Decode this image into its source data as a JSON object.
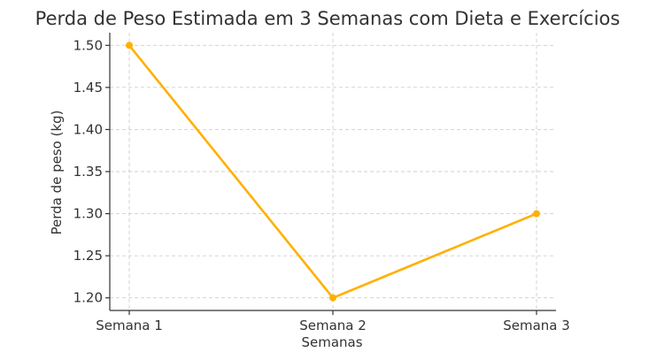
{
  "chart_data": {
    "type": "line",
    "title": "Perda de Peso Estimada em 3 Semanas com Dieta e Exercícios",
    "xlabel": "Semanas",
    "ylabel": "Perda de peso (kg)",
    "categories": [
      "Semana 1",
      "Semana 2",
      "Semana 3"
    ],
    "values": [
      1.5,
      1.2,
      1.3
    ],
    "ylim": [
      1.185,
      1.515
    ],
    "yticks": [
      "1.20",
      "1.25",
      "1.30",
      "1.35",
      "1.40",
      "1.45",
      "1.50"
    ],
    "grid": true,
    "color": "#FFB000"
  }
}
